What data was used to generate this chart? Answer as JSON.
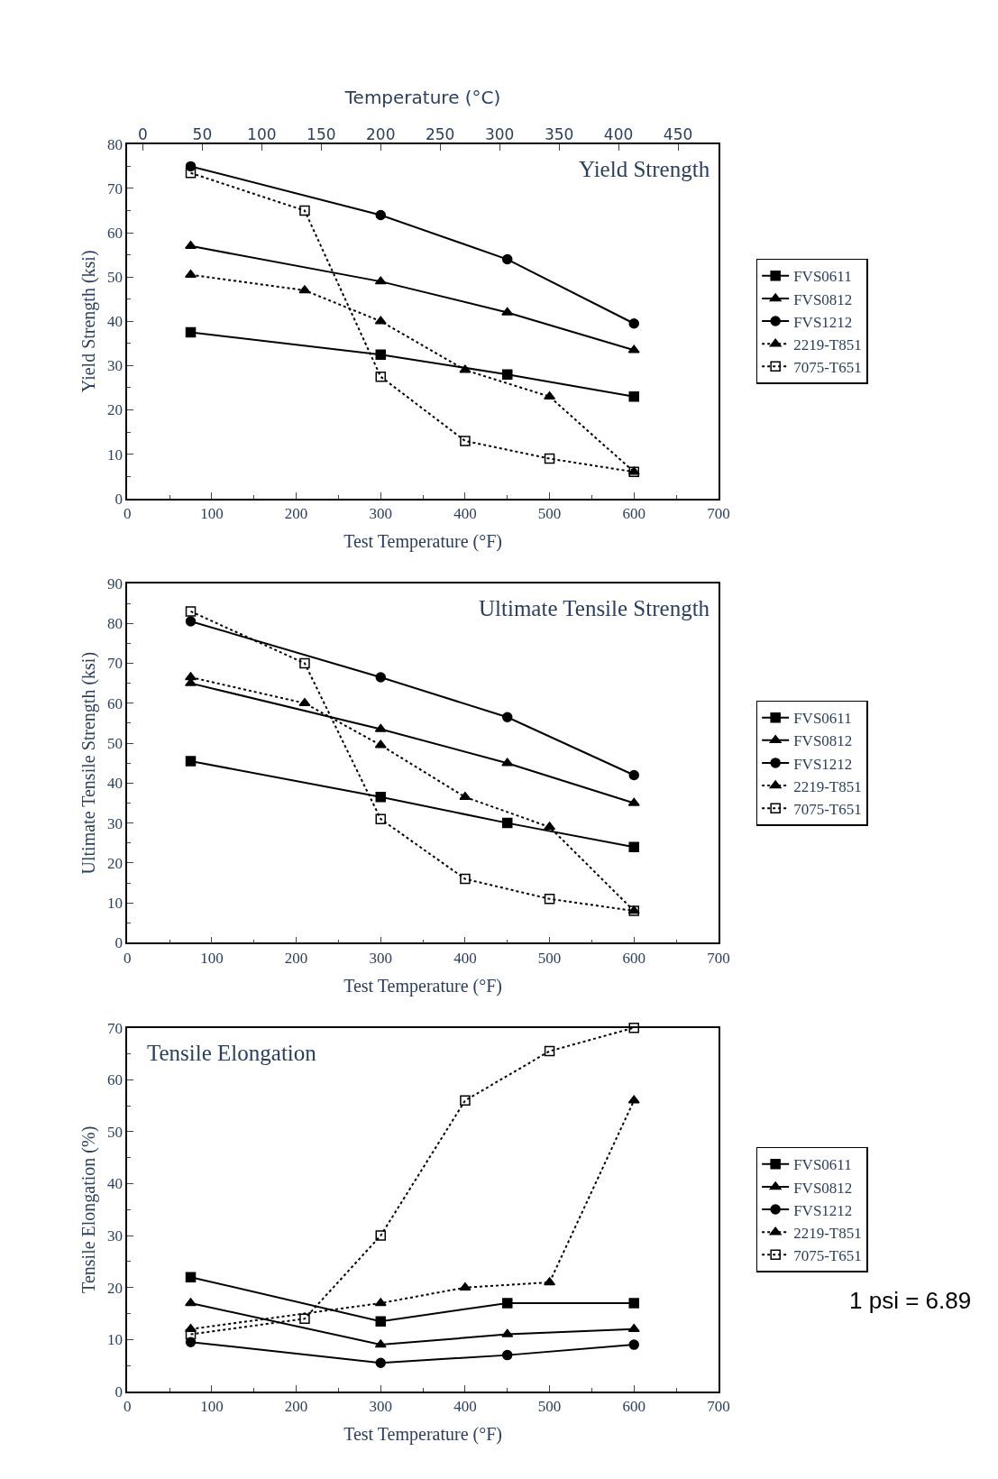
{
  "chart_data": [
    {
      "type": "line",
      "title": "Yield Strength",
      "xlabel": "Test Temperature (°F)",
      "ylabel": "Yield Strength (ksi)",
      "x2label": "Temperature (°C)",
      "xlim": [
        0,
        700
      ],
      "xticks": [
        0,
        100,
        200,
        300,
        400,
        500,
        600,
        700
      ],
      "x2lim": [
        -13,
        484
      ],
      "x2ticks": [
        0,
        50,
        100,
        150,
        200,
        250,
        300,
        350,
        400,
        450
      ],
      "ylim": [
        0,
        80
      ],
      "yticks": [
        0,
        10,
        20,
        30,
        40,
        50,
        60,
        70,
        80
      ],
      "grid": false,
      "legend": "right",
      "series": [
        {
          "name": "FVS0611",
          "color": "#000000",
          "marker": "square",
          "line_style": "solid",
          "x": [
            75,
            300,
            450,
            600
          ],
          "values": [
            37.5,
            32.5,
            28,
            23
          ]
        },
        {
          "name": "FVS0812",
          "color": "#000000",
          "marker": "triangle",
          "line_style": "solid",
          "x": [
            75,
            300,
            450,
            600
          ],
          "values": [
            57,
            49,
            42,
            33.5
          ]
        },
        {
          "name": "FVS1212",
          "color": "#000000",
          "marker": "circle",
          "line_style": "solid",
          "x": [
            75,
            300,
            450,
            600
          ],
          "values": [
            75,
            64,
            54,
            39.5
          ]
        },
        {
          "name": "2219-T851",
          "color": "#000000",
          "marker": "triangle",
          "line_style": "dotted",
          "x": [
            75,
            210,
            300,
            400,
            500,
            600
          ],
          "values": [
            50.5,
            47,
            40,
            29,
            23,
            6
          ]
        },
        {
          "name": "7075-T651",
          "color": "#000000",
          "marker": "square-open",
          "line_style": "dotted",
          "x": [
            75,
            210,
            300,
            400,
            500,
            600
          ],
          "values": [
            73.5,
            65,
            27.5,
            13,
            9,
            6
          ]
        }
      ]
    },
    {
      "type": "line",
      "title": "Ultimate Tensile Strength",
      "xlabel": "Test Temperature (°F)",
      "ylabel": "Ultimate Tensile Strength (ksi)",
      "xlim": [
        0,
        700
      ],
      "xticks": [
        0,
        100,
        200,
        300,
        400,
        500,
        600,
        700
      ],
      "ylim": [
        0,
        90
      ],
      "yticks": [
        0,
        10,
        20,
        30,
        40,
        50,
        60,
        70,
        80,
        90
      ],
      "grid": false,
      "legend": "right",
      "series": [
        {
          "name": "FVS0611",
          "color": "#000000",
          "marker": "square",
          "line_style": "solid",
          "x": [
            75,
            300,
            450,
            600
          ],
          "values": [
            45.5,
            36.5,
            30,
            24
          ]
        },
        {
          "name": "FVS0812",
          "color": "#000000",
          "marker": "triangle",
          "line_style": "solid",
          "x": [
            75,
            300,
            450,
            600
          ],
          "values": [
            65,
            53.5,
            45,
            35
          ]
        },
        {
          "name": "FVS1212",
          "color": "#000000",
          "marker": "circle",
          "line_style": "solid",
          "x": [
            75,
            300,
            450,
            600
          ],
          "values": [
            80.5,
            66.5,
            56.5,
            42
          ]
        },
        {
          "name": "2219-T851",
          "color": "#000000",
          "marker": "triangle",
          "line_style": "dotted",
          "x": [
            75,
            210,
            300,
            400,
            500,
            600
          ],
          "values": [
            66.5,
            60,
            49.5,
            36.5,
            29,
            8
          ]
        },
        {
          "name": "7075-T651",
          "color": "#000000",
          "marker": "square-open",
          "line_style": "dotted",
          "x": [
            75,
            210,
            300,
            400,
            500,
            600
          ],
          "values": [
            83,
            70,
            31,
            16,
            11,
            8
          ]
        }
      ]
    },
    {
      "type": "line",
      "title": "Tensile Elongation",
      "xlabel": "Test Temperature (°F)",
      "ylabel": "Tensile Elongation (%)",
      "xlim": [
        0,
        700
      ],
      "xticks": [
        0,
        100,
        200,
        300,
        400,
        500,
        600,
        700
      ],
      "ylim": [
        0,
        70
      ],
      "yticks": [
        0,
        10,
        20,
        30,
        40,
        50,
        60,
        70
      ],
      "grid": false,
      "legend": "right",
      "annotations": [
        "1 psi = 6.89"
      ],
      "series": [
        {
          "name": "FVS0611",
          "color": "#000000",
          "marker": "square",
          "line_style": "solid",
          "x": [
            75,
            300,
            450,
            600
          ],
          "values": [
            22,
            13.5,
            17,
            17
          ]
        },
        {
          "name": "FVS0812",
          "color": "#000000",
          "marker": "triangle",
          "line_style": "solid",
          "x": [
            75,
            300,
            450,
            600
          ],
          "values": [
            17,
            9,
            11,
            12
          ]
        },
        {
          "name": "FVS1212",
          "color": "#000000",
          "marker": "circle",
          "line_style": "solid",
          "x": [
            75,
            300,
            450,
            600
          ],
          "values": [
            9.5,
            5.5,
            7,
            9
          ]
        },
        {
          "name": "2219-T851",
          "color": "#000000",
          "marker": "triangle",
          "line_style": "dotted",
          "x": [
            75,
            300,
            400,
            500,
            600
          ],
          "values": [
            12,
            17,
            20,
            21,
            56
          ]
        },
        {
          "name": "7075-T651",
          "color": "#000000",
          "marker": "square-open",
          "line_style": "dotted",
          "x": [
            75,
            210,
            300,
            400,
            500,
            600
          ],
          "values": [
            11,
            14,
            30,
            56,
            65.5,
            70
          ]
        }
      ]
    }
  ]
}
